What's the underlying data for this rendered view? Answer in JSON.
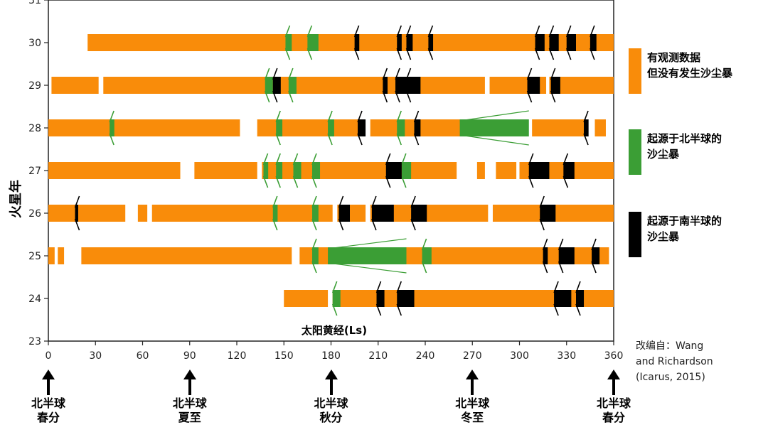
{
  "colors": {
    "observed": "#F98C0A",
    "north": "#3B9E35",
    "south": "#000000"
  },
  "legend": [
    {
      "key": "observed",
      "label": "有观测数据\n但没有发生沙尘暴",
      "color": "#F98C0A"
    },
    {
      "key": "north",
      "label": "起源于北半球的\n沙尘暴",
      "color": "#3B9E35"
    },
    {
      "key": "south",
      "label": "起源于南半球的\n沙尘暴",
      "color": "#000000"
    }
  ],
  "source_note": "改编自：Wang\nand Richardson\n(Icarus, 2015)",
  "seasons": [
    {
      "ls": 0,
      "label": "北半球\n春分"
    },
    {
      "ls": 90,
      "label": "北半球\n夏至"
    },
    {
      "ls": 180,
      "label": "北半球\n秋分"
    },
    {
      "ls": 270,
      "label": "北半球\n冬至"
    },
    {
      "ls": 360,
      "label": "北半球\n春分"
    }
  ],
  "chart_data": {
    "type": "bar",
    "orientation": "horizontal-timeline",
    "xlabel": "太阳黄经(Ls)",
    "ylabel": "火星年",
    "xlim": [
      0,
      360
    ],
    "ylim": [
      23,
      31
    ],
    "xticks": [
      0,
      30,
      60,
      90,
      120,
      150,
      180,
      210,
      240,
      270,
      300,
      330,
      360
    ],
    "yticks": [
      23,
      24,
      25,
      26,
      27,
      28,
      29,
      30,
      31
    ],
    "years": [
      {
        "year": 30,
        "observed": [
          [
            25,
            360
          ]
        ],
        "north_storms": [
          [
            151,
            155
          ],
          [
            165,
            172
          ]
        ],
        "south_storms": [
          [
            195,
            198
          ],
          [
            222,
            225
          ],
          [
            228,
            232
          ],
          [
            242,
            245
          ],
          [
            310,
            316
          ],
          [
            319,
            325
          ],
          [
            330,
            336
          ],
          [
            345,
            349
          ]
        ],
        "expanding": []
      },
      {
        "year": 29,
        "observed": [
          [
            2,
            32
          ],
          [
            35,
            278
          ],
          [
            281,
            317
          ],
          [
            319,
            321
          ],
          [
            324,
            360
          ]
        ],
        "north_storms": [
          [
            138,
            143
          ],
          [
            153,
            158
          ]
        ],
        "south_storms": [
          [
            143,
            148
          ],
          [
            213,
            216
          ],
          [
            221,
            228
          ],
          [
            228,
            237
          ],
          [
            305,
            313
          ],
          [
            320,
            326
          ]
        ],
        "expanding": []
      },
      {
        "year": 28,
        "observed": [
          [
            0,
            122
          ],
          [
            133,
            200
          ],
          [
            205,
            305
          ],
          [
            308,
            342
          ],
          [
            348,
            355
          ]
        ],
        "north_storms": [
          [
            39,
            42
          ],
          [
            145,
            149
          ],
          [
            178,
            182
          ],
          [
            222,
            227
          ]
        ],
        "south_storms": [
          [
            197,
            202
          ],
          [
            233,
            237
          ],
          [
            341,
            344
          ]
        ],
        "expanding": [
          {
            "start": 262,
            "end": 306,
            "kind": "north"
          }
        ]
      },
      {
        "year": 27,
        "observed": [
          [
            0,
            84
          ],
          [
            93,
            133
          ],
          [
            136,
            260
          ],
          [
            273,
            278
          ],
          [
            285,
            298
          ],
          [
            300,
            360
          ]
        ],
        "north_storms": [
          [
            137,
            140
          ],
          [
            145,
            149
          ],
          [
            156,
            161
          ],
          [
            168,
            173
          ],
          [
            225,
            231
          ]
        ],
        "south_storms": [
          [
            215,
            225
          ],
          [
            306,
            319
          ],
          [
            328,
            335
          ]
        ],
        "expanding": []
      },
      {
        "year": 26,
        "observed": [
          [
            0,
            49
          ],
          [
            57,
            63
          ],
          [
            66,
            181
          ],
          [
            184,
            202
          ],
          [
            205,
            280
          ],
          [
            283,
            360
          ]
        ],
        "north_storms": [
          [
            143,
            146
          ],
          [
            168,
            172
          ]
        ],
        "south_storms": [
          [
            17,
            19
          ],
          [
            185,
            192
          ],
          [
            206,
            220
          ],
          [
            231,
            241
          ],
          [
            313,
            323
          ]
        ],
        "expanding": []
      },
      {
        "year": 25,
        "observed": [
          [
            0,
            4
          ],
          [
            6,
            10
          ],
          [
            21,
            155
          ],
          [
            160,
            357
          ]
        ],
        "north_storms": [
          [
            168,
            172
          ],
          [
            238,
            244
          ]
        ],
        "south_storms": [
          [
            315,
            318
          ],
          [
            325,
            335
          ],
          [
            346,
            351
          ]
        ],
        "expanding": [
          {
            "start": 178,
            "end": 228,
            "kind": "north"
          }
        ]
      },
      {
        "year": 24,
        "observed": [
          [
            150,
            178
          ],
          [
            181,
            360
          ]
        ],
        "north_storms": [
          [
            181,
            186
          ]
        ],
        "south_storms": [
          [
            209,
            214
          ],
          [
            222,
            233
          ],
          [
            322,
            333
          ],
          [
            336,
            341
          ]
        ],
        "expanding": []
      }
    ]
  }
}
